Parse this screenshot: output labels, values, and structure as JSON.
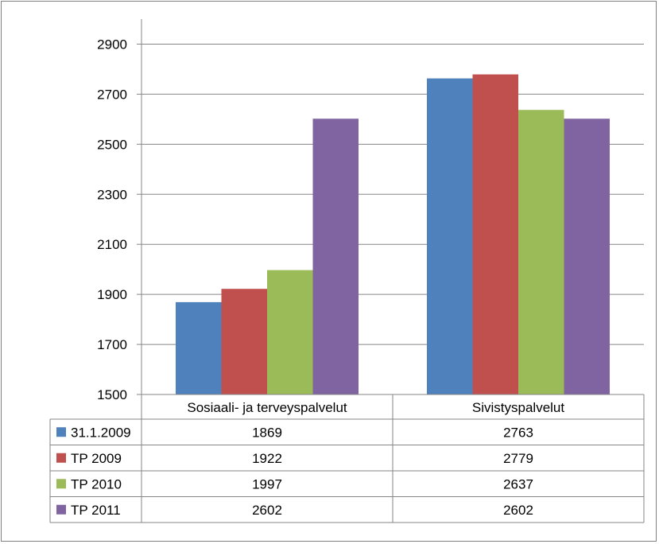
{
  "chart_data": {
    "type": "bar",
    "categories": [
      "Sosiaali- ja terveyspalvelut",
      "Sivistyspalvelut"
    ],
    "series": [
      {
        "name": "31.1.2009",
        "values": [
          1869,
          2763
        ],
        "color": "#4f81bd"
      },
      {
        "name": "TP 2009",
        "values": [
          1922,
          2779
        ],
        "color": "#c0504d"
      },
      {
        "name": "TP 2010",
        "values": [
          1997,
          2637
        ],
        "color": "#9bbb59"
      },
      {
        "name": "TP 2011",
        "values": [
          2602,
          2602
        ],
        "color": "#8064a2"
      }
    ],
    "ylim": [
      1500,
      3000
    ],
    "yticks": [
      1500,
      1700,
      1900,
      2100,
      2300,
      2500,
      2700,
      2900
    ],
    "grid": true,
    "legend": "data-table-left"
  }
}
